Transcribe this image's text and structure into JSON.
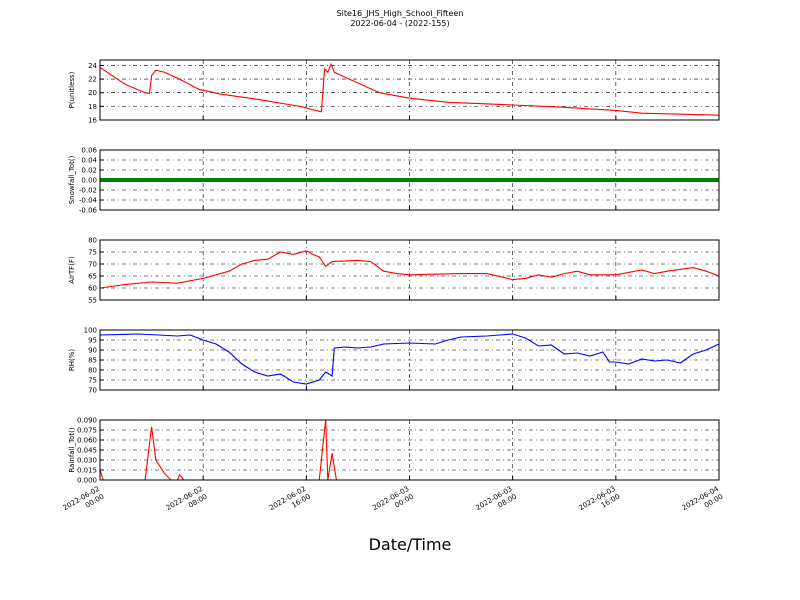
{
  "chart_data": [
    {
      "type": "line",
      "title": "Site16_JHS_High_School_Fifteen",
      "subtitle": "2022-06-04 - (2022-155)",
      "y_label": "P(unitless)",
      "series": [
        {
          "name": "P",
          "color": "#ff0000",
          "x": [
            "2022-06-02 00:00",
            "2022-06-02 01:30",
            "2022-06-02 02:00",
            "2022-06-02 03:30",
            "2022-06-02 03:50",
            "2022-06-02 04:00",
            "2022-06-02 04:20",
            "2022-06-02 05:00",
            "2022-06-02 06:10",
            "2022-06-02 07:40",
            "2022-06-02 09:20",
            "2022-06-02 12:20",
            "2022-06-02 15:30",
            "2022-06-02 17:10",
            "2022-06-02 17:25",
            "2022-06-02 17:40",
            "2022-06-02 17:55",
            "2022-06-02 18:10",
            "2022-06-02 19:20",
            "2022-06-02 21:40",
            "2022-06-03 00:00",
            "2022-06-03 03:00",
            "2022-06-03 08:00",
            "2022-06-03 11:40",
            "2022-06-03 16:00",
            "2022-06-03 18:00",
            "2022-06-04 00:00"
          ],
          "values": [
            23.7,
            21.8,
            21.2,
            20,
            19.9,
            22.5,
            23.3,
            23,
            22,
            20.5,
            19.8,
            19,
            18,
            17.2,
            23.5,
            23,
            24.2,
            23,
            22,
            20,
            19.2,
            18.6,
            18.2,
            17.9,
            17.4,
            17,
            16.7
          ]
        }
      ],
      "xlim": [
        "2022-06-02 00:00",
        "2022-06-04 00:00"
      ],
      "xticks": [
        "2022-06-02 00:00",
        "2022-06-02 08:00",
        "2022-06-02 16:00",
        "2022-06-03 00:00",
        "2022-06-03 08:00",
        "2022-06-03 16:00",
        "2022-06-04 00:00"
      ],
      "ylim": [
        16,
        24.8
      ],
      "yticks": [
        16,
        18,
        20,
        22,
        24
      ],
      "grid": true
    },
    {
      "type": "line",
      "y_label": "Snowfall_Tot()",
      "series": [
        {
          "name": "Snowfall_Tot",
          "color": "#008000",
          "x": [
            "2022-06-02 00:00",
            "2022-06-02 04:00",
            "2022-06-02 08:00",
            "2022-06-02 12:00",
            "2022-06-02 16:00",
            "2022-06-02 20:00",
            "2022-06-03 00:00",
            "2022-06-03 04:00",
            "2022-06-03 08:00",
            "2022-06-03 12:00",
            "2022-06-03 16:00",
            "2022-06-03 20:00",
            "2022-06-04 00:00"
          ],
          "values": [
            0,
            0,
            0,
            0,
            0,
            0,
            0,
            0,
            0,
            0,
            0,
            0,
            0
          ]
        }
      ],
      "xlim": [
        "2022-06-02 00:00",
        "2022-06-04 00:00"
      ],
      "xticks": [
        "2022-06-02 00:00",
        "2022-06-02 08:00",
        "2022-06-02 16:00",
        "2022-06-03 00:00",
        "2022-06-03 08:00",
        "2022-06-03 16:00",
        "2022-06-04 00:00"
      ],
      "ylim": [
        -0.06,
        0.06
      ],
      "yticks": [
        -0.06,
        -0.04,
        -0.02,
        {
          "value": 0,
          "label": "0.00"
        },
        0.02,
        0.04,
        0.06
      ],
      "grid": true
    },
    {
      "type": "line",
      "y_label": "AirTF(F)",
      "series": [
        {
          "name": "AirTF",
          "color": "#ff0000",
          "x": [
            "2022-06-02 00:00",
            "2022-06-02 02:00",
            "2022-06-02 04:00",
            "2022-06-02 06:00",
            "2022-06-02 08:00",
            "2022-06-02 10:00",
            "2022-06-02 11:00",
            "2022-06-02 12:00",
            "2022-06-02 13:00",
            "2022-06-02 14:00",
            "2022-06-02 15:00",
            "2022-06-02 16:00",
            "2022-06-02 16:30",
            "2022-06-02 17:00",
            "2022-06-02 17:30",
            "2022-06-02 18:00",
            "2022-06-02 20:00",
            "2022-06-02 21:00",
            "2022-06-02 22:00",
            "2022-06-02 23:00",
            "2022-06-03 00:00",
            "2022-06-03 04:00",
            "2022-06-03 06:00",
            "2022-06-03 08:00",
            "2022-06-03 09:00",
            "2022-06-03 10:00",
            "2022-06-03 11:00",
            "2022-06-03 12:00",
            "2022-06-03 13:00",
            "2022-06-03 14:00",
            "2022-06-03 16:00",
            "2022-06-03 18:00",
            "2022-06-03 19:00",
            "2022-06-03 20:00",
            "2022-06-03 22:00",
            "2022-06-03 23:00",
            "2022-06-04 00:00"
          ],
          "values": [
            60,
            61.5,
            62.5,
            62,
            64,
            67,
            70,
            71.5,
            72,
            75,
            74,
            75.5,
            74,
            73,
            69,
            71,
            71.5,
            71,
            67,
            66,
            65.5,
            66,
            66,
            63.5,
            64,
            65.5,
            64.5,
            66,
            67,
            65.5,
            65.5,
            67.5,
            66,
            67,
            68.5,
            67,
            65
          ]
        }
      ],
      "xlim": [
        "2022-06-02 00:00",
        "2022-06-04 00:00"
      ],
      "xticks": [
        "2022-06-02 00:00",
        "2022-06-02 08:00",
        "2022-06-02 16:00",
        "2022-06-03 00:00",
        "2022-06-03 08:00",
        "2022-06-03 16:00",
        "2022-06-04 00:00"
      ],
      "ylim": [
        55,
        80
      ],
      "yticks": [
        55,
        60,
        65,
        70,
        75,
        80
      ],
      "grid": true
    },
    {
      "type": "line",
      "y_label": "RH(%)",
      "series": [
        {
          "name": "RH",
          "color": "#0000ff",
          "x": [
            "2022-06-02 00:00",
            "2022-06-02 03:00",
            "2022-06-02 06:00",
            "2022-06-02 07:00",
            "2022-06-02 08:00",
            "2022-06-02 09:00",
            "2022-06-02 10:00",
            "2022-06-02 11:00",
            "2022-06-02 12:00",
            "2022-06-02 13:00",
            "2022-06-02 14:00",
            "2022-06-02 15:00",
            "2022-06-02 16:00",
            "2022-06-02 17:00",
            "2022-06-02 17:30",
            "2022-06-02 18:00",
            "2022-06-02 18:10",
            "2022-06-02 19:00",
            "2022-06-02 20:00",
            "2022-06-02 21:00",
            "2022-06-02 22:00",
            "2022-06-03 00:00",
            "2022-06-03 02:00",
            "2022-06-03 03:00",
            "2022-06-03 04:00",
            "2022-06-03 06:00",
            "2022-06-03 07:00",
            "2022-06-03 08:00",
            "2022-06-03 09:00",
            "2022-06-03 10:00",
            "2022-06-03 11:00",
            "2022-06-03 12:00",
            "2022-06-03 13:00",
            "2022-06-03 14:00",
            "2022-06-03 15:00",
            "2022-06-03 15:30",
            "2022-06-03 16:00",
            "2022-06-03 17:00",
            "2022-06-03 18:00",
            "2022-06-03 19:00",
            "2022-06-03 20:00",
            "2022-06-03 21:00",
            "2022-06-03 22:00",
            "2022-06-03 23:00",
            "2022-06-04 00:00"
          ],
          "values": [
            97.5,
            98,
            97,
            97.5,
            95,
            93,
            89,
            83,
            79,
            77,
            78,
            74,
            73,
            75,
            79,
            77,
            91,
            91.5,
            91,
            91.5,
            93,
            93.5,
            93,
            95,
            96.5,
            97,
            97.5,
            98,
            96,
            92,
            92.5,
            88,
            88.5,
            87,
            89,
            84,
            84,
            83,
            85.5,
            84.5,
            85,
            83.5,
            88,
            90,
            93
          ]
        }
      ],
      "xlim": [
        "2022-06-02 00:00",
        "2022-06-04 00:00"
      ],
      "xticks": [
        "2022-06-02 00:00",
        "2022-06-02 08:00",
        "2022-06-02 16:00",
        "2022-06-03 00:00",
        "2022-06-03 08:00",
        "2022-06-03 16:00",
        "2022-06-04 00:00"
      ],
      "ylim": [
        70,
        100
      ],
      "yticks": [
        70,
        75,
        80,
        85,
        90,
        95,
        100
      ],
      "grid": true
    },
    {
      "type": "line",
      "y_label": "Rainfall_Tot()",
      "x_label": "Date/Time",
      "series": [
        {
          "name": "Rainfall_Tot",
          "color": "#ff0000",
          "x": [
            "2022-06-02 00:00",
            "2022-06-02 00:15",
            "2022-06-02 03:30",
            "2022-06-02 04:00",
            "2022-06-02 04:20",
            "2022-06-02 05:00",
            "2022-06-02 05:30",
            "2022-06-02 06:00",
            "2022-06-02 06:10",
            "2022-06-02 06:30",
            "2022-06-02 17:00",
            "2022-06-02 17:30",
            "2022-06-02 17:40",
            "2022-06-02 18:00",
            "2022-06-02 18:20",
            "2022-06-04 00:00"
          ],
          "values": [
            0.015,
            0,
            0,
            0.08,
            0.03,
            0.01,
            0,
            0,
            0.008,
            0,
            0,
            0.09,
            0,
            0.04,
            0,
            0
          ]
        }
      ],
      "xlim": [
        "2022-06-02 00:00",
        "2022-06-04 00:00"
      ],
      "xticks": [
        "2022-06-02 00:00",
        "2022-06-02 08:00",
        "2022-06-02 16:00",
        "2022-06-03 00:00",
        "2022-06-03 08:00",
        "2022-06-03 16:00",
        "2022-06-04 00:00"
      ],
      "ylim": [
        0,
        0.09
      ],
      "yticks": [
        {
          "value": 0,
          "label": "0.000"
        },
        {
          "value": 0.015,
          "label": "0.015"
        },
        {
          "value": 0.03,
          "label": "0.030"
        },
        {
          "value": 0.045,
          "label": "0.045"
        },
        {
          "value": 0.06,
          "label": "0.060"
        },
        {
          "value": 0.075,
          "label": "0.075"
        },
        {
          "value": 0.09,
          "label": "0.090"
        }
      ],
      "grid": true
    }
  ]
}
